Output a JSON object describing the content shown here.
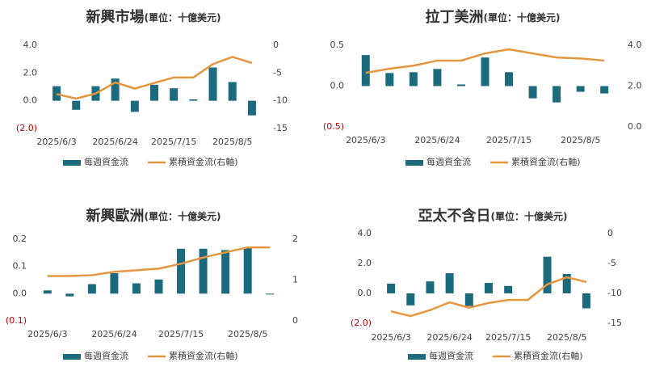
{
  "chart_data": [
    {
      "type": "combo",
      "title": "新興市場",
      "subtitle": "(單位：十億美元)",
      "categories": [
        "2025/6/3",
        null,
        null,
        "2025/6/24",
        null,
        null,
        "2025/7/15",
        null,
        null,
        "2025/8/5",
        null
      ],
      "series": [
        {
          "name": "每週資金流",
          "type": "bar",
          "color": "#1b6a7e",
          "values": [
            1.05,
            -0.65,
            1.05,
            1.6,
            -0.8,
            1.15,
            0.9,
            0.1,
            2.4,
            1.35,
            -1.05
          ]
        },
        {
          "name": "累積資金流(右軸)",
          "type": "line",
          "axis": "y2",
          "color": "#e3963e",
          "values": [
            -8.8,
            -9.6,
            -8.7,
            -6.7,
            -7.8,
            -6.8,
            -5.8,
            -5.8,
            -3.4,
            -2.1,
            -3.2
          ]
        }
      ],
      "ylim": [
        -2,
        4
      ],
      "yticks": [
        {
          "value": 4,
          "label": "4.0"
        },
        {
          "value": 2,
          "label": "2.0"
        },
        {
          "value": 0,
          "label": "0.0"
        },
        {
          "value": -2,
          "label": "(2.0)"
        }
      ],
      "y2lim": [
        -15,
        0
      ],
      "y2ticks": [
        0,
        -5,
        -10,
        -15
      ],
      "negative_tick_color": "#c00000"
    },
    {
      "type": "combo",
      "title": "拉丁美洲",
      "subtitle": "(單位：十億美元)",
      "categories": [
        "2025/6/3",
        null,
        null,
        "2025/6/24",
        null,
        null,
        "2025/7/15",
        null,
        null,
        "2025/8/5",
        null
      ],
      "series": [
        {
          "name": "每週資金流",
          "type": "bar",
          "color": "#1b6a7e",
          "values": [
            0.38,
            0.16,
            0.17,
            0.21,
            0.02,
            0.35,
            0.17,
            -0.15,
            -0.2,
            -0.07,
            -0.09
          ]
        },
        {
          "name": "累積資金流(右軸)",
          "type": "line",
          "axis": "y2",
          "color": "#e3963e",
          "values": [
            2.65,
            2.85,
            3.0,
            3.25,
            3.25,
            3.6,
            3.8,
            3.6,
            3.4,
            3.35,
            3.25
          ]
        }
      ],
      "ylim": [
        -0.5,
        0.5
      ],
      "yticks": [
        0.5,
        {
          "value": 0,
          "label": "0.0"
        },
        {
          "value": -0.5,
          "label": "(0.5)"
        }
      ],
      "y2lim": [
        0,
        4
      ],
      "y2ticks": [
        {
          "value": 4,
          "label": "4.0"
        },
        {
          "value": 2,
          "label": "2.0"
        },
        {
          "value": 0,
          "label": "0.0"
        }
      ],
      "negative_tick_color": "#c00000"
    },
    {
      "type": "combo",
      "title": "新興歐洲",
      "subtitle": "(單位：十億美元)",
      "categories": [
        "2025/6/3",
        null,
        null,
        "2025/6/24",
        null,
        null,
        "2025/7/15",
        null,
        null,
        "2025/8/5",
        null
      ],
      "series": [
        {
          "name": "每週資金流",
          "type": "bar",
          "color": "#1b6a7e",
          "values": [
            0.012,
            -0.01,
            0.035,
            0.075,
            0.038,
            0.052,
            0.165,
            0.165,
            0.16,
            0.17,
            -0.003
          ]
        },
        {
          "name": "累積資金流(右軸)",
          "type": "line",
          "axis": "y2",
          "color": "#e3963e",
          "values": [
            1.1,
            1.1,
            1.12,
            1.2,
            1.24,
            1.28,
            1.4,
            1.55,
            1.68,
            1.8,
            1.8
          ]
        }
      ],
      "ylim": [
        -0.1,
        0.2
      ],
      "yticks": [
        0.2,
        0.1,
        {
          "value": 0,
          "label": "0.0"
        },
        {
          "value": -0.1,
          "label": "(0.1)"
        }
      ],
      "y2lim": [
        0,
        2
      ],
      "y2ticks": [
        2,
        1,
        0
      ],
      "negative_tick_color": "#c00000"
    },
    {
      "type": "combo",
      "title": "亞太不含日",
      "subtitle": "(單位：十億美元)",
      "categories": [
        "2025/6/3",
        null,
        null,
        "2025/6/24",
        null,
        null,
        "2025/7/15",
        null,
        null,
        "2025/8/5",
        null
      ],
      "series": [
        {
          "name": "每週資金流",
          "type": "bar",
          "color": "#1b6a7e",
          "values": [
            0.65,
            -0.8,
            0.8,
            1.35,
            -0.85,
            0.7,
            0.5,
            0,
            2.45,
            1.3,
            -1.0
          ]
        },
        {
          "name": "累積資金流(右軸)",
          "type": "line",
          "axis": "y2",
          "color": "#e3963e",
          "values": [
            -13.0,
            -13.8,
            -12.8,
            -11.5,
            -12.4,
            -11.6,
            -11.1,
            -11.1,
            -8.5,
            -7.3,
            -8.1
          ]
        }
      ],
      "ylim": [
        -2,
        4
      ],
      "yticks": [
        {
          "value": 4,
          "label": "4.0"
        },
        {
          "value": 2,
          "label": "2.0"
        },
        {
          "value": 0,
          "label": "0.0"
        },
        {
          "value": -2,
          "label": "(2.0)"
        }
      ],
      "y2lim": [
        -15,
        0
      ],
      "y2ticks": [
        0,
        -5,
        -10,
        -15
      ],
      "negative_tick_color": "#c00000"
    }
  ]
}
